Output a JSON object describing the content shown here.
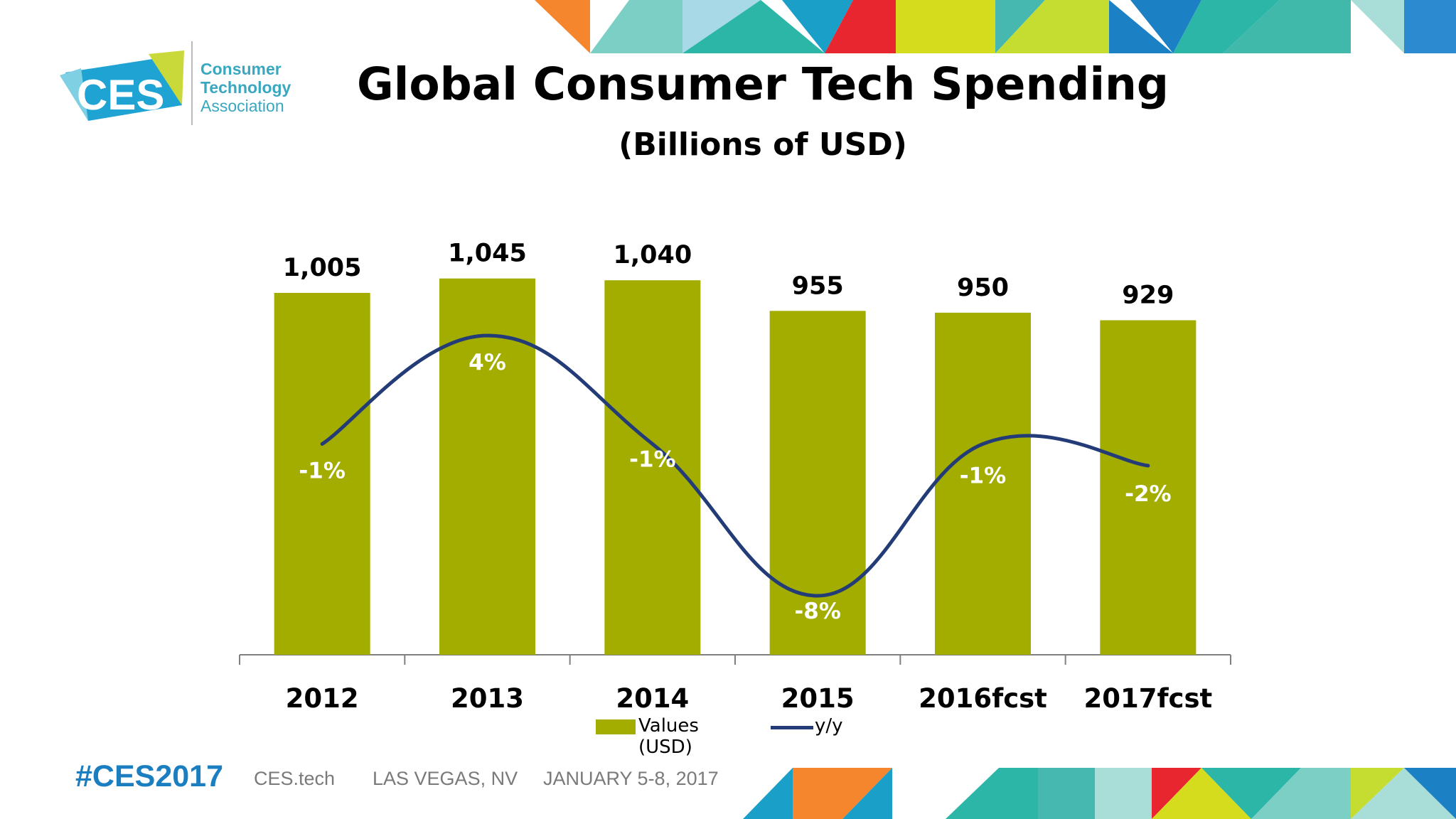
{
  "logo": {
    "mark": "CES",
    "line1": "Consumer",
    "line2": "Technology",
    "line3": "Association"
  },
  "footer": {
    "hashtag": "#CES2017",
    "site": "CES.tech",
    "location": "LAS VEGAS, NV",
    "dates": "JANUARY 5-8, 2017"
  },
  "colors": {
    "bar": "#a3ad00",
    "line": "#233c78",
    "hashtag": "#1a7ec0"
  },
  "chart_data": {
    "type": "bar",
    "title": "Global Consumer Tech Spending",
    "subtitle": "(Billions of USD)",
    "categories": [
      "2012",
      "2013",
      "2014",
      "2015",
      "2016fcst",
      "2017fcst"
    ],
    "series": [
      {
        "name": "Values (USD)",
        "type": "bar",
        "values": [
          1005,
          1045,
          1040,
          955,
          950,
          929
        ],
        "labels": [
          "1,005",
          "1,045",
          "1,040",
          "955",
          "950",
          "929"
        ]
      },
      {
        "name": "y/y",
        "type": "line",
        "values": [
          -1,
          4,
          -1,
          -8,
          -1,
          -2
        ],
        "labels": [
          "-1%",
          "4%",
          "-1%",
          "-8%",
          "-1%",
          "-2%"
        ]
      }
    ],
    "legend": "bottom",
    "grid": false
  }
}
